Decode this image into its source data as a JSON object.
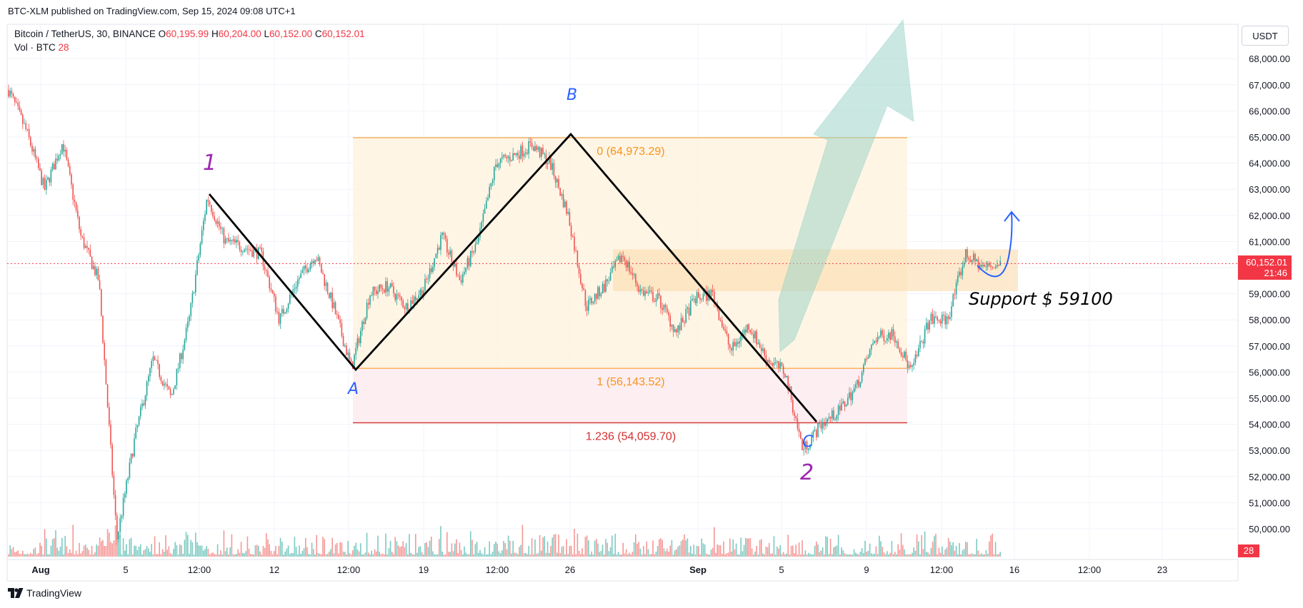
{
  "header": {
    "publisher": "BTC-XLM published on TradingView.com, Sep 15, 2024 09:08 UTC+1"
  },
  "legend": {
    "symbol": "Bitcoin / TetherUS, 30, BINANCE",
    "o_label": "O",
    "o_value": "60,195.99",
    "h_label": "H",
    "h_value": "60,204.00",
    "l_label": "L",
    "l_value": "60,152.00",
    "c_label": "C",
    "c_value": "60,152.01",
    "vol_label": "Vol · BTC",
    "vol_value": "28"
  },
  "currency_button": "USDT",
  "last_price": {
    "value": "60,152.01",
    "countdown": "21:46"
  },
  "volume_tag": "28",
  "footer": {
    "brand": "TradingView"
  },
  "colors": {
    "up": "#26a69a",
    "down": "#ef5350",
    "fib_orange": "#f7931a",
    "fib_red": "#d32f2f",
    "wave_purple": "#9c27b0",
    "wave_blue": "#2962ff",
    "arrow_teal": "#9fd6c9",
    "price_line": "#f23645"
  },
  "chart_data": {
    "type": "candlestick",
    "symbol": "BTCUSDT",
    "timeframe": "30",
    "exchange": "BINANCE",
    "y_axis": {
      "ylim": [
        49000,
        68700
      ],
      "ticks": [
        50000,
        51000,
        52000,
        53000,
        54000,
        55000,
        56000,
        57000,
        58000,
        59000,
        60000,
        61000,
        62000,
        63000,
        64000,
        65000,
        66000,
        67000,
        68000
      ],
      "tick_labels": [
        "50,000.00",
        "51,000.00",
        "52,000.00",
        "53,000.00",
        "54,000.00",
        "55,000.00",
        "56,000.00",
        "57,000.00",
        "58,000.00",
        "59,000.00",
        "60,000.00",
        "61,000.00",
        "62,000.00",
        "63,000.00",
        "64,000.00",
        "65,000.00",
        "66,000.00",
        "67,000.00",
        "68,000.00"
      ]
    },
    "x_axis": {
      "ticks": [
        "Aug",
        "5",
        "12:00",
        "12",
        "12:00",
        "19",
        "12:00",
        "26",
        "Sep",
        "5",
        "9",
        "12:00",
        "16",
        "12:00",
        "23"
      ],
      "bold": [
        "Aug",
        "Sep"
      ]
    },
    "price_path": [
      [
        "Aug 1",
        66800
      ],
      [
        "Aug 2",
        65200
      ],
      [
        "Aug 3",
        63000
      ],
      [
        "Aug 4",
        64800
      ],
      [
        "Aug 4 12:00",
        61200
      ],
      [
        "Aug 5",
        59500
      ],
      [
        "Aug 5 06:00",
        49600
      ],
      [
        "Aug 5 12:00",
        53500
      ],
      [
        "Aug 6",
        56500
      ],
      [
        "Aug 7",
        55000
      ],
      [
        "Aug 7 12:00",
        58000
      ],
      [
        "Aug 8",
        62700
      ],
      [
        "Aug 9",
        61000
      ],
      [
        "Aug 10",
        60800
      ],
      [
        "Aug 11",
        60500
      ],
      [
        "Aug 12",
        58000
      ],
      [
        "Aug 13",
        59500
      ],
      [
        "Aug 14",
        60500
      ],
      [
        "Aug 15",
        58500
      ],
      [
        "Aug 15 12:00",
        56143
      ],
      [
        "Aug 16",
        59000
      ],
      [
        "Aug 17",
        59300
      ],
      [
        "Aug 18",
        58500
      ],
      [
        "Aug 19",
        59200
      ],
      [
        "Aug 20",
        61200
      ],
      [
        "Aug 21",
        59500
      ],
      [
        "Aug 22",
        61000
      ],
      [
        "Aug 23",
        64000
      ],
      [
        "Aug 24",
        64300
      ],
      [
        "Aug 25",
        64700
      ],
      [
        "Aug 26",
        64000
      ],
      [
        "Aug 27",
        62000
      ],
      [
        "Aug 27 12:00",
        58500
      ],
      [
        "Aug 28",
        59300
      ],
      [
        "Aug 29",
        60500
      ],
      [
        "Aug 30",
        59100
      ],
      [
        "Aug 31",
        58800
      ],
      [
        "Sep 1",
        57500
      ],
      [
        "Sep 2",
        58800
      ],
      [
        "Sep 3",
        59000
      ],
      [
        "Sep 4",
        56800
      ],
      [
        "Sep 5",
        57800
      ],
      [
        "Sep 5 12:00",
        56500
      ],
      [
        "Sep 6",
        56000
      ],
      [
        "Sep 6 12:00",
        53000
      ],
      [
        "Sep 7",
        54000
      ],
      [
        "Sep 8",
        54500
      ],
      [
        "Sep 9",
        55500
      ],
      [
        "Sep 10",
        57300
      ],
      [
        "Sep 11",
        57500
      ],
      [
        "Sep 11 12:00",
        56000
      ],
      [
        "Sep 12",
        58000
      ],
      [
        "Sep 13",
        58000
      ],
      [
        "Sep 13 12:00",
        60500
      ],
      [
        "Sep 14",
        60000
      ],
      [
        "Sep 15",
        60152
      ]
    ],
    "fibonacci": [
      {
        "label": "0 (64,973.29)",
        "level": 0,
        "price": 64973.29
      },
      {
        "label": "1 (56,143.52)",
        "level": 1,
        "price": 56143.52
      },
      {
        "label": "1.236 (54,059.70)",
        "level": 1.236,
        "price": 54059.7
      }
    ],
    "annotations": {
      "wave_1": "1",
      "wave_2": "2",
      "point_a": "A",
      "point_b": "B",
      "point_c": "C",
      "support_text": "Support   $ 59100",
      "support_zone": [
        59100,
        60700
      ]
    },
    "last_price": 60152.01,
    "last_volume": 28
  }
}
